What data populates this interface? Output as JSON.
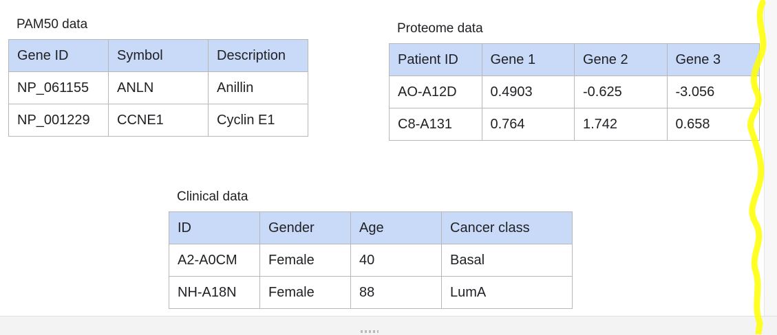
{
  "pam50": {
    "title": "PAM50 data",
    "headers": [
      "Gene ID",
      "Symbol",
      "Description"
    ],
    "rows": [
      [
        "NP_061155",
        "ANLN",
        "Anillin"
      ],
      [
        "NP_001229",
        "CCNE1",
        "Cyclin E1"
      ]
    ]
  },
  "proteome": {
    "title": "Proteome data",
    "headers": [
      "Patient ID",
      "Gene 1",
      "Gene 2",
      "Gene 3"
    ],
    "rows": [
      [
        "AO-A12D",
        "0.4903",
        "-0.625",
        "-3.056"
      ],
      [
        "C8-A131",
        "0.764",
        "1.742",
        "0.658"
      ]
    ]
  },
  "clinical": {
    "title": "Clinical data",
    "headers": [
      "ID",
      "Gender",
      "Age",
      "Cancer class"
    ],
    "rows": [
      [
        "A2-A0CM",
        "Female",
        "40",
        "Basal"
      ],
      [
        "NH-A18N",
        "Female",
        "88",
        "LumA"
      ]
    ]
  },
  "colors": {
    "header_fill": "#c9daf8",
    "grid_line": "#b7b7b7",
    "highlighter": "#ffff00"
  }
}
